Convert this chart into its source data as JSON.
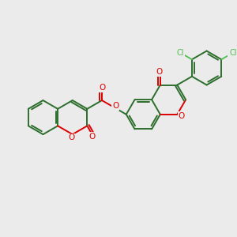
{
  "background_color": "#EBEBEB",
  "bond_color": "#2d6e2d",
  "oxygen_color": "#dd0000",
  "chlorine_color": "#4dbd4d",
  "bond_width": 1.4,
  "figsize": [
    3.0,
    3.0
  ],
  "dpi": 100,
  "xlim": [
    0,
    10
  ],
  "ylim": [
    1,
    9
  ]
}
